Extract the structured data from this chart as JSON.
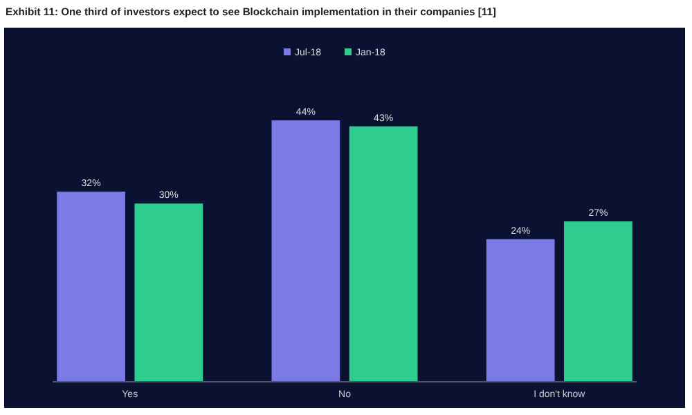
{
  "chart_data": {
    "type": "bar",
    "title": "Exhibit 11: One third of investors expect to see Blockchain implementation in their companies [11]",
    "categories": [
      "Yes",
      "No",
      "I don't know"
    ],
    "series": [
      {
        "name": "Jul-18",
        "color": "#7b7be6",
        "values": [
          32,
          44,
          24
        ],
        "value_labels": [
          "32%",
          "44%",
          "24%"
        ]
      },
      {
        "name": "Jan-18",
        "color": "#2ecc8f",
        "values": [
          30,
          43,
          27
        ],
        "value_labels": [
          "30%",
          "43%",
          "27%"
        ]
      }
    ],
    "legend": "top",
    "grid": false
  }
}
